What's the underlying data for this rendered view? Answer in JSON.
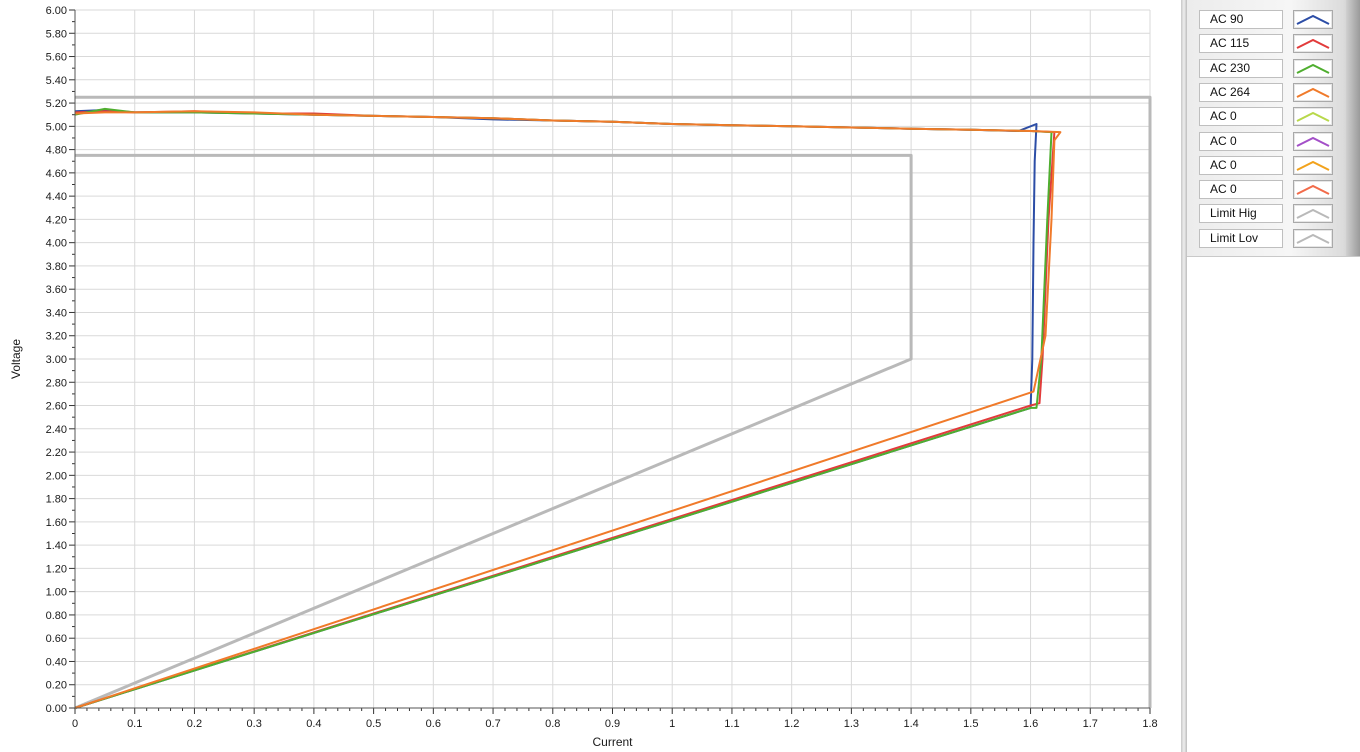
{
  "chart_data": {
    "type": "line",
    "xlabel": "Current",
    "ylabel": "Voltage",
    "xlim": [
      0,
      1.8
    ],
    "ylim": [
      0,
      6
    ],
    "x_ticks": [
      "0",
      "0.1",
      "0.2",
      "0.3",
      "0.4",
      "0.5",
      "0.6",
      "0.7",
      "0.8",
      "0.9",
      "1",
      "1.1",
      "1.2",
      "1.3",
      "1.4",
      "1.5",
      "1.6",
      "1.7",
      "1.8"
    ],
    "y_ticks": [
      "0.00",
      "0.20",
      "0.40",
      "0.60",
      "0.80",
      "1.00",
      "1.20",
      "1.40",
      "1.60",
      "1.80",
      "2.00",
      "2.20",
      "2.40",
      "2.60",
      "2.80",
      "3.00",
      "3.20",
      "3.40",
      "3.60",
      "3.80",
      "4.00",
      "4.20",
      "4.40",
      "4.60",
      "4.80",
      "5.00",
      "5.20",
      "5.40",
      "5.60",
      "5.80",
      "6.00"
    ],
    "grid": true,
    "legend_position": "right",
    "series": [
      {
        "name": "AC 90",
        "color": "#2c4da6",
        "points": [
          [
            0.0,
            5.13
          ],
          [
            0.05,
            5.14
          ],
          [
            0.1,
            5.12
          ],
          [
            0.2,
            5.12
          ],
          [
            0.3,
            5.11
          ],
          [
            0.4,
            5.1
          ],
          [
            0.5,
            5.09
          ],
          [
            0.6,
            5.08
          ],
          [
            0.7,
            5.06
          ],
          [
            0.8,
            5.05
          ],
          [
            0.9,
            5.04
          ],
          [
            1.0,
            5.02
          ],
          [
            1.1,
            5.01
          ],
          [
            1.2,
            5.0
          ],
          [
            1.3,
            4.99
          ],
          [
            1.4,
            4.98
          ],
          [
            1.5,
            4.97
          ],
          [
            1.58,
            4.96
          ],
          [
            1.61,
            5.02
          ],
          [
            1.607,
            4.7
          ],
          [
            1.605,
            4.0
          ],
          [
            1.603,
            3.0
          ],
          [
            1.6,
            2.58
          ],
          [
            0.0,
            0.0
          ]
        ]
      },
      {
        "name": "AC 115",
        "color": "#e23b3b",
        "points": [
          [
            0.0,
            5.12
          ],
          [
            0.05,
            5.13
          ],
          [
            0.1,
            5.12
          ],
          [
            0.2,
            5.13
          ],
          [
            0.3,
            5.11
          ],
          [
            0.4,
            5.11
          ],
          [
            0.5,
            5.09
          ],
          [
            0.6,
            5.08
          ],
          [
            0.7,
            5.07
          ],
          [
            0.8,
            5.05
          ],
          [
            0.9,
            5.04
          ],
          [
            1.0,
            5.02
          ],
          [
            1.1,
            5.01
          ],
          [
            1.2,
            5.0
          ],
          [
            1.3,
            4.99
          ],
          [
            1.4,
            4.98
          ],
          [
            1.5,
            4.97
          ],
          [
            1.6,
            4.96
          ],
          [
            1.64,
            4.95
          ],
          [
            1.63,
            4.2
          ],
          [
            1.62,
            3.0
          ],
          [
            1.615,
            2.62
          ],
          [
            1.6,
            2.6
          ],
          [
            0.0,
            0.0
          ]
        ]
      },
      {
        "name": "AC 230",
        "color": "#4fae2f",
        "points": [
          [
            0.0,
            5.1
          ],
          [
            0.05,
            5.15
          ],
          [
            0.1,
            5.12
          ],
          [
            0.2,
            5.12
          ],
          [
            0.3,
            5.11
          ],
          [
            0.4,
            5.1
          ],
          [
            0.5,
            5.09
          ],
          [
            0.6,
            5.08
          ],
          [
            0.7,
            5.07
          ],
          [
            0.8,
            5.05
          ],
          [
            0.9,
            5.04
          ],
          [
            1.0,
            5.02
          ],
          [
            1.1,
            5.01
          ],
          [
            1.2,
            5.0
          ],
          [
            1.3,
            4.99
          ],
          [
            1.4,
            4.98
          ],
          [
            1.5,
            4.97
          ],
          [
            1.6,
            4.96
          ],
          [
            1.635,
            4.95
          ],
          [
            1.628,
            4.2
          ],
          [
            1.618,
            3.0
          ],
          [
            1.61,
            2.58
          ],
          [
            1.6,
            2.58
          ],
          [
            0.0,
            0.0
          ]
        ]
      },
      {
        "name": "AC 264",
        "color": "#f07a2a",
        "points": [
          [
            0.0,
            5.11
          ],
          [
            0.05,
            5.12
          ],
          [
            0.1,
            5.12
          ],
          [
            0.2,
            5.13
          ],
          [
            0.3,
            5.12
          ],
          [
            0.4,
            5.1
          ],
          [
            0.5,
            5.09
          ],
          [
            0.6,
            5.08
          ],
          [
            0.7,
            5.07
          ],
          [
            0.8,
            5.05
          ],
          [
            0.9,
            5.04
          ],
          [
            1.0,
            5.02
          ],
          [
            1.1,
            5.01
          ],
          [
            1.2,
            5.0
          ],
          [
            1.3,
            4.99
          ],
          [
            1.4,
            4.98
          ],
          [
            1.5,
            4.97
          ],
          [
            1.6,
            4.96
          ],
          [
            1.65,
            4.95
          ],
          [
            1.64,
            4.88
          ],
          [
            1.635,
            4.2
          ],
          [
            1.625,
            3.2
          ],
          [
            1.605,
            2.72
          ],
          [
            0.0,
            0.0
          ]
        ]
      },
      {
        "name": "AC 0",
        "color": "#b8d84a",
        "points": []
      },
      {
        "name": "AC 0",
        "color": "#a34fc8",
        "points": []
      },
      {
        "name": "AC 0",
        "color": "#f2a21c",
        "points": []
      },
      {
        "name": "AC 0",
        "color": "#f26b4a",
        "points": []
      },
      {
        "name": "Limit Hig",
        "color": "#b9b9b9",
        "points": [
          [
            0.0,
            5.25
          ],
          [
            1.8,
            5.25
          ],
          [
            1.8,
            0.0
          ]
        ]
      },
      {
        "name": "Limit Lov",
        "color": "#b9b9b9",
        "points": [
          [
            0.0,
            4.75
          ],
          [
            1.4,
            4.75
          ],
          [
            1.4,
            3.0
          ],
          [
            0.0,
            0.0
          ]
        ]
      }
    ]
  }
}
